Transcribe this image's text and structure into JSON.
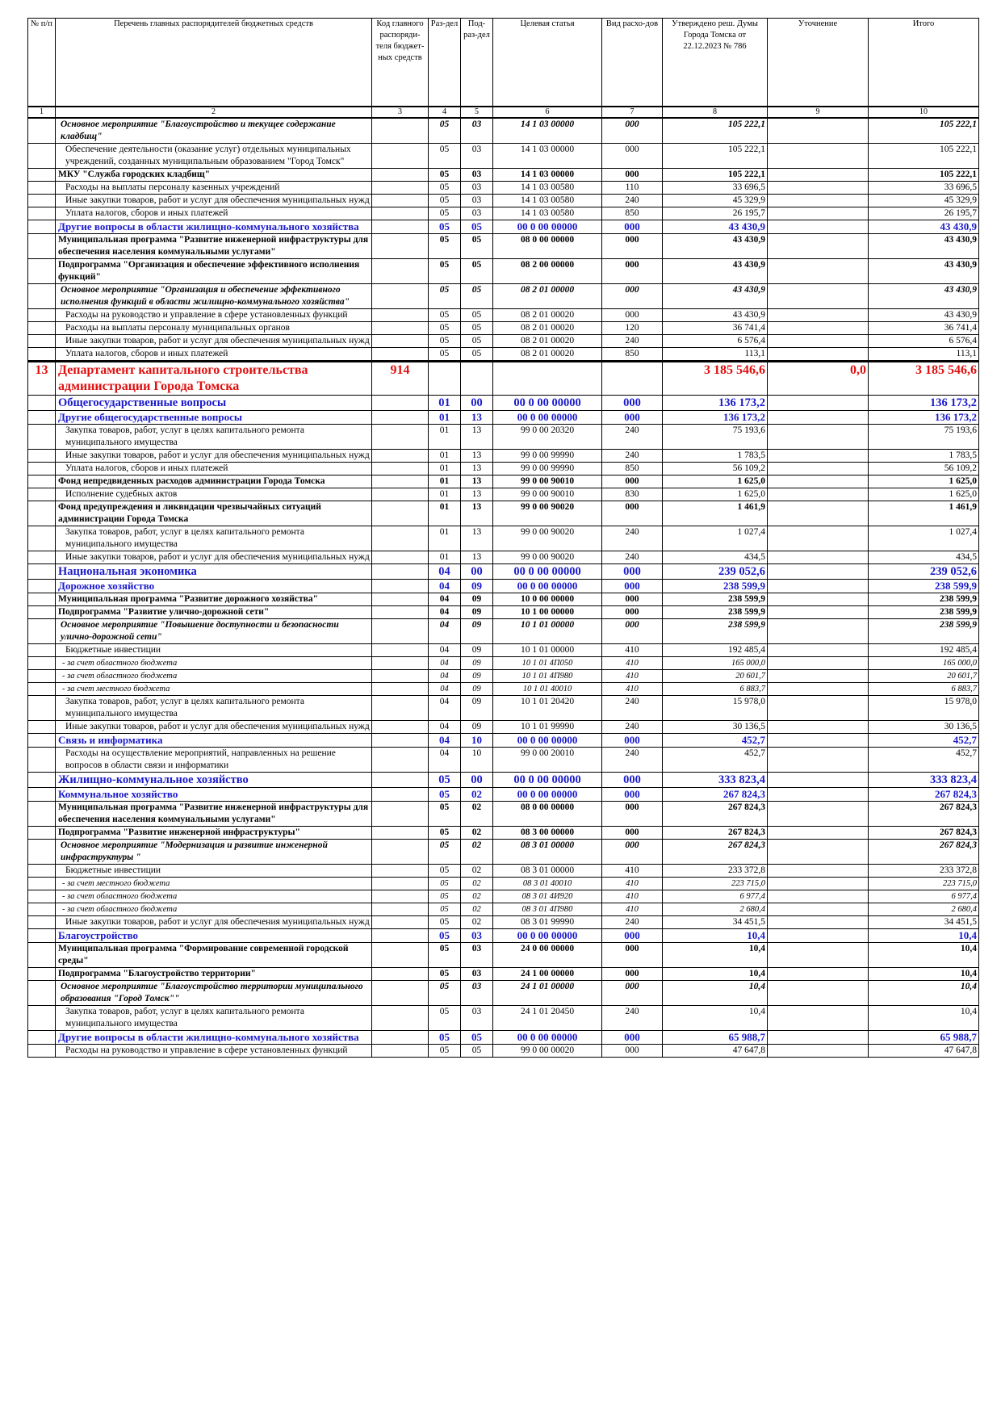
{
  "table": {
    "header": [
      "№ п/п",
      "Перечень главных распорядителей бюджетных средств",
      "Код главного распоряди-теля бюджет-ных средств",
      "Раз-дел",
      "Под-раз-дел",
      "Целевая статья",
      "Вид расхо-дов",
      "Утверждено реш. Думы Города Томска от 22.12.2023 № 786",
      "Уточнение",
      "Итого"
    ],
    "column_numbers": [
      1,
      2,
      3,
      4,
      5,
      6,
      7,
      8,
      9,
      10
    ],
    "rows": [
      [
        null,
        "Основное мероприятие \"Благоустройство и текущее содержание кладбищ\"",
        null,
        "05",
        "03",
        "14 1 03 00000",
        "000",
        "105 222,1",
        null,
        "105 222,1"
      ],
      [
        null,
        "Обеспечение деятельности (оказание услуг) отдельных муниципальных учреждений, созданных муниципальным образованием \"Город Томск\"",
        null,
        "05",
        "03",
        "14 1 03 00000",
        "000",
        "105 222,1",
        null,
        "105 222,1"
      ],
      [
        null,
        "МКУ \"Служба городских кладбищ\"",
        null,
        "05",
        "03",
        "14 1 03 00000",
        "000",
        "105 222,1",
        null,
        "105 222,1"
      ],
      [
        null,
        "Расходы на выплаты персоналу казенных учреждений",
        null,
        "05",
        "03",
        "14 1 03 00580",
        "110",
        "33 696,5",
        null,
        "33 696,5"
      ],
      [
        null,
        "Иные закупки товаров, работ и услуг для обеспечения муниципальных нужд",
        null,
        "05",
        "03",
        "14 1 03 00580",
        "240",
        "45 329,9",
        null,
        "45 329,9"
      ],
      [
        null,
        "Уплата налогов, сборов и иных платежей",
        null,
        "05",
        "03",
        "14 1 03 00580",
        "850",
        "26 195,7",
        null,
        "26 195,7"
      ],
      [
        null,
        "Другие вопросы в области жилищно-коммунального хозяйства",
        null,
        "05",
        "05",
        "00 0 00 00000",
        "000",
        "43 430,9",
        null,
        "43 430,9"
      ],
      [
        null,
        "Муниципальная программа \"Развитие инженерной инфраструктуры для обеспечения населения коммунальными услугами\"",
        null,
        "05",
        "05",
        "08 0 00 00000",
        "000",
        "43 430,9",
        null,
        "43 430,9"
      ],
      [
        null,
        "Подпрограмма \"Организация и обеспечение эффективного исполнения функций\"",
        null,
        "05",
        "05",
        "08 2 00 00000",
        "000",
        "43 430,9",
        null,
        "43 430,9"
      ],
      [
        null,
        "Основное мероприятие \"Организация и обеспечение эффективного исполнения функций в области жилищно-коммунального хозяйства\"",
        null,
        "05",
        "05",
        "08 2 01 00000",
        "000",
        "43 430,9",
        null,
        "43 430,9"
      ],
      [
        null,
        "Расходы на руководство и управление в сфере установленных функций",
        null,
        "05",
        "05",
        "08 2 01 00020",
        "000",
        "43 430,9",
        null,
        "43 430,9"
      ],
      [
        null,
        "Расходы на выплаты персоналу муниципальных органов",
        null,
        "05",
        "05",
        "08 2 01 00020",
        "120",
        "36 741,4",
        null,
        "36 741,4"
      ],
      [
        null,
        "Иные закупки товаров, работ и услуг для обеспечения муниципальных нужд",
        null,
        "05",
        "05",
        "08 2 01 00020",
        "240",
        "6 576,4",
        null,
        "6 576,4"
      ],
      [
        null,
        "Уплата налогов, сборов и иных платежей",
        null,
        "05",
        "05",
        "08 2 01 00020",
        "850",
        "113,1",
        null,
        "113,1"
      ],
      [
        "13",
        "Департамент капитального строительства администрации Города Томска",
        "914",
        null,
        null,
        null,
        null,
        "3 185 546,6",
        "0,0",
        "3 185 546,6"
      ],
      [
        null,
        "Общегосударственные вопросы",
        null,
        "01",
        "00",
        "00 0 00 00000",
        "000",
        "136 173,2",
        null,
        "136 173,2"
      ],
      [
        null,
        "Другие общегосударственные вопросы",
        null,
        "01",
        "13",
        "00 0 00 00000",
        "000",
        "136 173,2",
        null,
        "136 173,2"
      ],
      [
        null,
        "Закупка товаров, работ, услуг в целях капитального ремонта муниципального имущества",
        null,
        "01",
        "13",
        "99 0 00 20320",
        "240",
        "75 193,6",
        null,
        "75 193,6"
      ],
      [
        null,
        "Иные закупки товаров, работ и услуг для обеспечения муниципальных нужд",
        null,
        "01",
        "13",
        "99 0 00 99990",
        "240",
        "1 783,5",
        null,
        "1 783,5"
      ],
      [
        null,
        "Уплата налогов, сборов и иных платежей",
        null,
        "01",
        "13",
        "99 0 00 99990",
        "850",
        "56 109,2",
        null,
        "56 109,2"
      ],
      [
        null,
        "Фонд непредвиденных расходов администрации Города Томска",
        null,
        "01",
        "13",
        "99 0 00 90010",
        "000",
        "1 625,0",
        null,
        "1 625,0"
      ],
      [
        null,
        "Исполнение судебных актов",
        null,
        "01",
        "13",
        "99 0 00 90010",
        "830",
        "1 625,0",
        null,
        "1 625,0"
      ],
      [
        null,
        "Фонд предупреждения и ликвидации чрезвычайных ситуаций администрации Города Томска",
        null,
        "01",
        "13",
        "99 0 00 90020",
        "000",
        "1 461,9",
        null,
        "1 461,9"
      ],
      [
        null,
        "Закупка товаров, работ, услуг в целях капитального ремонта муниципального имущества",
        null,
        "01",
        "13",
        "99 0 00 90020",
        "240",
        "1 027,4",
        null,
        "1 027,4"
      ],
      [
        null,
        "Иные закупки товаров, работ и услуг для обеспечения муниципальных нужд",
        null,
        "01",
        "13",
        "99 0 00 90020",
        "240",
        "434,5",
        null,
        "434,5"
      ],
      [
        null,
        "Национальная экономика",
        null,
        "04",
        "00",
        "00 0 00 00000",
        "000",
        "239 052,6",
        null,
        "239 052,6"
      ],
      [
        null,
        "Дорожное хозяйство",
        null,
        "04",
        "09",
        "00 0 00 00000",
        "000",
        "238 599,9",
        null,
        "238 599,9"
      ],
      [
        null,
        "Муниципальная программа \"Развитие дорожного хозяйства\"",
        null,
        "04",
        "09",
        "10 0 00 00000",
        "000",
        "238 599,9",
        null,
        "238 599,9"
      ],
      [
        null,
        "Подпрограмма \"Развитие улично-дорожной сети\"",
        null,
        "04",
        "09",
        "10 1 00 00000",
        "000",
        "238 599,9",
        null,
        "238 599,9"
      ],
      [
        null,
        "Основное мероприятие \"Повышение доступности и безопасности улично-дорожной сети\"",
        null,
        "04",
        "09",
        "10 1 01 00000",
        "000",
        "238 599,9",
        null,
        "238 599,9"
      ],
      [
        null,
        "Бюджетные инвестиции",
        null,
        "04",
        "09",
        "10 1 01 00000",
        "410",
        "192 485,4",
        null,
        "192 485,4"
      ],
      [
        null,
        "- за счет областного бюджета",
        null,
        "04",
        "09",
        "10 1 01 4П050",
        "410",
        "165 000,0",
        null,
        "165 000,0"
      ],
      [
        null,
        "- за счет областного бюджета",
        null,
        "04",
        "09",
        "10 1 01 4П980",
        "410",
        "20 601,7",
        null,
        "20 601,7"
      ],
      [
        null,
        "- за счет местного бюджета",
        null,
        "04",
        "09",
        "10 1 01 40010",
        "410",
        "6 883,7",
        null,
        "6 883,7"
      ],
      [
        null,
        "Закупка товаров, работ, услуг в целях капитального ремонта муниципального имущества",
        null,
        "04",
        "09",
        "10 1 01 20420",
        "240",
        "15 978,0",
        null,
        "15 978,0"
      ],
      [
        null,
        "Иные закупки товаров, работ и услуг для обеспечения муниципальных нужд",
        null,
        "04",
        "09",
        "10 1 01 99990",
        "240",
        "30 136,5",
        null,
        "30 136,5"
      ],
      [
        null,
        "Связь и информатика",
        null,
        "04",
        "10",
        "00 0 00 00000",
        "000",
        "452,7",
        null,
        "452,7"
      ],
      [
        null,
        "Расходы на осуществление мероприятий, направленных на решение вопросов в области связи и информатики",
        null,
        "04",
        "10",
        "99 0 00 20010",
        "240",
        "452,7",
        null,
        "452,7"
      ],
      [
        null,
        "Жилищно-коммунальное хозяйство",
        null,
        "05",
        "00",
        "00 0 00 00000",
        "000",
        "333 823,4",
        null,
        "333 823,4"
      ],
      [
        null,
        "Коммунальное хозяйство",
        null,
        "05",
        "02",
        "00 0 00 00000",
        "000",
        "267 824,3",
        null,
        "267 824,3"
      ],
      [
        null,
        "Муниципальная программа \"Развитие инженерной инфраструктуры для обеспечения населения коммунальными услугами\"",
        null,
        "05",
        "02",
        "08 0 00 00000",
        "000",
        "267 824,3",
        null,
        "267 824,3"
      ],
      [
        null,
        "Подпрограмма \"Развитие инженерной инфраструктуры\"",
        null,
        "05",
        "02",
        "08 3 00 00000",
        "000",
        "267 824,3",
        null,
        "267 824,3"
      ],
      [
        null,
        "Основное мероприятие \"Модернизация и развитие инженерной инфраструктуры \"",
        null,
        "05",
        "02",
        "08 3 01 00000",
        "000",
        "267 824,3",
        null,
        "267 824,3"
      ],
      [
        null,
        "Бюджетные инвестиции",
        null,
        "05",
        "02",
        "08 3 01 00000",
        "410",
        "233 372,8",
        null,
        "233 372,8"
      ],
      [
        null,
        "- за счет местного бюджета",
        null,
        "05",
        "02",
        "08 3 01 40010",
        "410",
        "223 715,0",
        null,
        "223 715,0"
      ],
      [
        null,
        "- за счет областного бюджета",
        null,
        "05",
        "02",
        "08 3 01 4И920",
        "410",
        "6 977,4",
        null,
        "6 977,4"
      ],
      [
        null,
        "- за счет областного бюджета",
        null,
        "05",
        "02",
        "08 3 01 4П980",
        "410",
        "2 680,4",
        null,
        "2 680,4"
      ],
      [
        null,
        "Иные закупки товаров, работ и услуг для обеспечения муниципальных нужд",
        null,
        "05",
        "02",
        "08 3 01 99990",
        "240",
        "34 451,5",
        null,
        "34 451,5"
      ],
      [
        null,
        "Благоустройство",
        null,
        "05",
        "03",
        "00 0 00 00000",
        "000",
        "10,4",
        null,
        "10,4"
      ],
      [
        null,
        "Муниципальная программа \"Формирование современной городской среды\"",
        null,
        "05",
        "03",
        "24 0 00 00000",
        "000",
        "10,4",
        null,
        "10,4"
      ],
      [
        null,
        "Подпрограмма \"Благоустройство территории\"",
        null,
        "05",
        "03",
        "24 1 00 00000",
        "000",
        "10,4",
        null,
        "10,4"
      ],
      [
        null,
        "Основное мероприятие \"Благоустройство территории муниципального образования \"Город Томск\"\"",
        null,
        "05",
        "03",
        "24 1 01 00000",
        "000",
        "10,4",
        null,
        "10,4"
      ],
      [
        null,
        "Закупка товаров, работ, услуг в целях капитального ремонта муниципального имущества",
        null,
        "05",
        "03",
        "24 1 01 20450",
        "240",
        "10,4",
        null,
        "10,4"
      ],
      [
        null,
        "Другие вопросы в области жилищно-коммунального хозяйства",
        null,
        "05",
        "05",
        "00 0 00 00000",
        "000",
        "65 988,7",
        null,
        "65 988,7"
      ],
      [
        null,
        "Расходы на руководство и управление в сфере установленных функций",
        null,
        "05",
        "05",
        "99 0 00 00020",
        "000",
        "47 647,8",
        null,
        "47 647,8"
      ]
    ]
  }
}
